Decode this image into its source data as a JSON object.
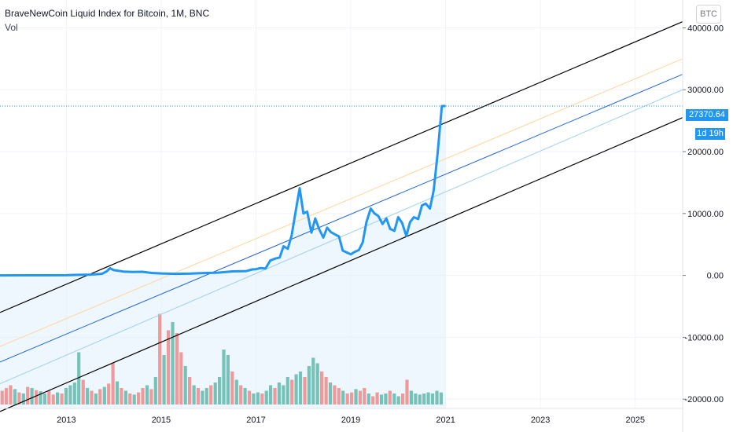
{
  "header": {
    "title": "BraveNewCoin Liquid Index for Bitcoin, 1M, BNC",
    "volume_label": "Vol",
    "currency_button": "BTC"
  },
  "price_axis": {
    "current_price": "27370.64",
    "countdown": "1d 19h"
  },
  "colors": {
    "price_line": "#2196f3",
    "channel_outer": "#000000",
    "channel_mid": "#1e63d6",
    "channel_upper_inner": "#ffd59a",
    "channel_lower_inner": "#9fd0f0",
    "volume_up": "#77c2b8",
    "volume_down": "#ef9a9a",
    "area_fill": "#e3f2fd"
  },
  "chart_data": {
    "type": "line",
    "title": "BraveNewCoin Liquid Index for Bitcoin, 1M, BNC",
    "x_tick_labels": [
      "2013",
      "2015",
      "2017",
      "2019",
      "2021",
      "2023",
      "2025"
    ],
    "y_tick_labels": [
      "40000.00",
      "30000.00",
      "20000.00",
      "10000.00",
      "0.00",
      "-10000.00",
      "-20000.00"
    ],
    "ylim": [
      -21500,
      44500
    ],
    "xlim": [
      2011.6,
      2026.0
    ],
    "series": [
      {
        "type": "line",
        "x": [
          2011.6,
          2012.0,
          2012.5,
          2013.0,
          2013.25,
          2013.5,
          2013.75,
          2013.85,
          2013.92,
          2014.0,
          2014.2,
          2014.4,
          2014.6,
          2014.8,
          2015.0,
          2015.3,
          2015.6,
          2015.9,
          2016.2,
          2016.5,
          2016.8,
          2016.92,
          2017.0,
          2017.1,
          2017.2,
          2017.3,
          2017.4,
          2017.5,
          2017.58,
          2017.67,
          2017.75,
          2017.83,
          2017.92,
          2018.0,
          2018.08,
          2018.17,
          2018.25,
          2018.33,
          2018.42,
          2018.5,
          2018.58,
          2018.67,
          2018.75,
          2018.83,
          2018.92,
          2019.0,
          2019.08,
          2019.17,
          2019.25,
          2019.33,
          2019.42,
          2019.5,
          2019.58,
          2019.67,
          2019.75,
          2019.83,
          2019.92,
          2020.0,
          2020.08,
          2020.17,
          2020.25,
          2020.33,
          2020.42,
          2020.5,
          2020.58,
          2020.67,
          2020.75,
          2020.83,
          2020.92,
          2021.0
        ],
        "values": [
          5,
          8,
          10,
          20,
          90,
          130,
          250,
          650,
          1150,
          850,
          620,
          560,
          580,
          400,
          320,
          260,
          280,
          380,
          440,
          650,
          700,
          960,
          1000,
          1200,
          1100,
          2400,
          2700,
          2900,
          4700,
          4300,
          6400,
          10000,
          14100,
          10000,
          10300,
          6900,
          9200,
          7500,
          6100,
          7700,
          7000,
          6600,
          6300,
          4000,
          3700,
          3400,
          3800,
          4100,
          5300,
          8600,
          10800,
          10000,
          9600,
          8300,
          9200,
          7500,
          7200,
          9400,
          8500,
          6400,
          8600,
          9400,
          9100,
          11300,
          11600,
          10800,
          13800,
          19700,
          27370,
          27370
        ],
        "color": "#2196f3"
      }
    ],
    "channel_lines": [
      {
        "role": "upper",
        "color": "#000000",
        "points": [
          [
            2011.6,
            -6000
          ],
          [
            2026.0,
            41000
          ]
        ]
      },
      {
        "role": "upper-inner",
        "color": "#ffd59a",
        "points": [
          [
            2011.6,
            -11500
          ],
          [
            2026.0,
            35000
          ]
        ]
      },
      {
        "role": "median",
        "color": "#1e63d6",
        "points": [
          [
            2011.6,
            -14000
          ],
          [
            2026.0,
            32500
          ]
        ]
      },
      {
        "role": "lower-inner",
        "color": "#9fd0f0",
        "points": [
          [
            2011.6,
            -17500
          ],
          [
            2026.0,
            30000
          ]
        ]
      },
      {
        "role": "lower",
        "color": "#000000",
        "points": [
          [
            2011.6,
            -22000
          ],
          [
            2026.0,
            25500
          ]
        ]
      }
    ],
    "current_price_line": 27370.64,
    "volume": [
      {
        "v": 0.25,
        "up": false
      },
      {
        "v": 0.3,
        "up": false
      },
      {
        "v": 0.35,
        "up": false
      },
      {
        "v": 0.28,
        "up": true
      },
      {
        "v": 0.22,
        "up": false
      },
      {
        "v": 0.2,
        "up": true
      },
      {
        "v": 0.32,
        "up": false
      },
      {
        "v": 0.3,
        "up": true
      },
      {
        "v": 0.26,
        "up": false
      },
      {
        "v": 0.24,
        "up": true
      },
      {
        "v": 0.2,
        "up": true
      },
      {
        "v": 0.25,
        "up": false
      },
      {
        "v": 0.18,
        "up": false
      },
      {
        "v": 0.22,
        "up": true
      },
      {
        "v": 0.2,
        "up": false
      },
      {
        "v": 0.3,
        "up": true
      },
      {
        "v": 0.35,
        "up": true
      },
      {
        "v": 0.4,
        "up": true
      },
      {
        "v": 0.95,
        "up": true
      },
      {
        "v": 0.45,
        "up": false
      },
      {
        "v": 0.3,
        "up": true
      },
      {
        "v": 0.25,
        "up": false
      },
      {
        "v": 0.2,
        "up": true
      },
      {
        "v": 0.28,
        "up": false
      },
      {
        "v": 0.32,
        "up": true
      },
      {
        "v": 0.38,
        "up": false
      },
      {
        "v": 0.75,
        "up": false
      },
      {
        "v": 0.42,
        "up": true
      },
      {
        "v": 0.3,
        "up": false
      },
      {
        "v": 0.25,
        "up": true
      },
      {
        "v": 0.2,
        "up": false
      },
      {
        "v": 0.18,
        "up": true
      },
      {
        "v": 0.22,
        "up": false
      },
      {
        "v": 0.3,
        "up": false
      },
      {
        "v": 0.35,
        "up": true
      },
      {
        "v": 0.28,
        "up": false
      },
      {
        "v": 0.5,
        "up": true
      },
      {
        "v": 1.65,
        "up": false
      },
      {
        "v": 0.9,
        "up": true
      },
      {
        "v": 1.35,
        "up": false
      },
      {
        "v": 1.5,
        "up": true
      },
      {
        "v": 1.3,
        "up": false
      },
      {
        "v": 0.95,
        "up": false
      },
      {
        "v": 0.7,
        "up": true
      },
      {
        "v": 0.5,
        "up": false
      },
      {
        "v": 0.35,
        "up": true
      },
      {
        "v": 0.3,
        "up": false
      },
      {
        "v": 0.25,
        "up": true
      },
      {
        "v": 0.3,
        "up": true
      },
      {
        "v": 0.35,
        "up": false
      },
      {
        "v": 0.4,
        "up": true
      },
      {
        "v": 0.5,
        "up": true
      },
      {
        "v": 1.0,
        "up": true
      },
      {
        "v": 0.9,
        "up": true
      },
      {
        "v": 0.6,
        "up": false
      },
      {
        "v": 0.45,
        "up": true
      },
      {
        "v": 0.35,
        "up": false
      },
      {
        "v": 0.3,
        "up": true
      },
      {
        "v": 0.25,
        "up": false
      },
      {
        "v": 0.2,
        "up": true
      },
      {
        "v": 0.22,
        "up": true
      },
      {
        "v": 0.2,
        "up": false
      },
      {
        "v": 0.25,
        "up": true
      },
      {
        "v": 0.35,
        "up": true
      },
      {
        "v": 0.3,
        "up": false
      },
      {
        "v": 0.4,
        "up": true
      },
      {
        "v": 0.35,
        "up": true
      },
      {
        "v": 0.5,
        "up": true
      },
      {
        "v": 0.45,
        "up": false
      },
      {
        "v": 0.55,
        "up": true
      },
      {
        "v": 0.6,
        "up": true
      },
      {
        "v": 0.5,
        "up": false
      },
      {
        "v": 0.7,
        "up": true
      },
      {
        "v": 0.85,
        "up": true
      },
      {
        "v": 0.75,
        "up": true
      },
      {
        "v": 0.6,
        "up": false
      },
      {
        "v": 0.5,
        "up": false
      },
      {
        "v": 0.4,
        "up": true
      },
      {
        "v": 0.35,
        "up": false
      },
      {
        "v": 0.3,
        "up": false
      },
      {
        "v": 0.25,
        "up": true
      },
      {
        "v": 0.2,
        "up": false
      },
      {
        "v": 0.22,
        "up": false
      },
      {
        "v": 0.28,
        "up": true
      },
      {
        "v": 0.25,
        "up": false
      },
      {
        "v": 0.3,
        "up": false
      },
      {
        "v": 0.2,
        "up": true
      },
      {
        "v": 0.15,
        "up": false
      },
      {
        "v": 0.22,
        "up": false
      },
      {
        "v": 0.18,
        "up": true
      },
      {
        "v": 0.2,
        "up": true
      },
      {
        "v": 0.25,
        "up": false
      },
      {
        "v": 0.2,
        "up": true
      },
      {
        "v": 0.15,
        "up": true
      },
      {
        "v": 0.2,
        "up": false
      },
      {
        "v": 0.45,
        "up": false
      },
      {
        "v": 0.25,
        "up": true
      },
      {
        "v": 0.2,
        "up": true
      },
      {
        "v": 0.18,
        "up": true
      },
      {
        "v": 0.2,
        "up": true
      },
      {
        "v": 0.22,
        "up": true
      },
      {
        "v": 0.2,
        "up": true
      },
      {
        "v": 0.25,
        "up": true
      },
      {
        "v": 0.22,
        "up": true
      }
    ],
    "grid": true,
    "legend_position": "top-left"
  }
}
